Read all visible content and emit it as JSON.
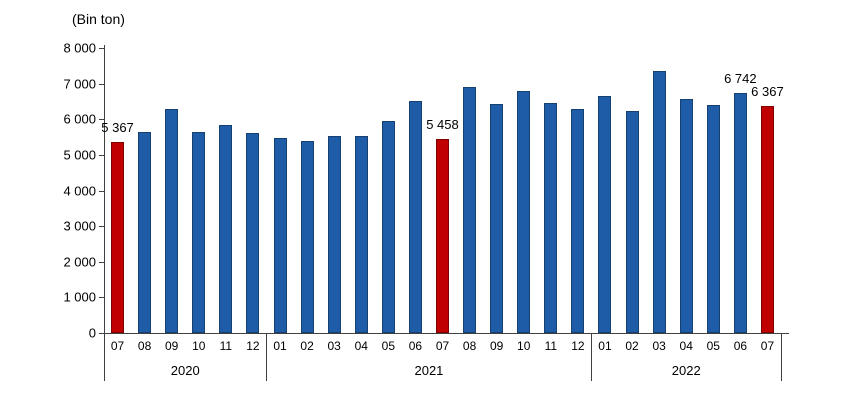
{
  "chart_data": {
    "type": "bar",
    "unit_label": "(Bin ton)",
    "ylim": [
      0,
      8000
    ],
    "ytick_step": 1000,
    "ytick_labels": [
      "0",
      "1 000",
      "2 000",
      "3 000",
      "4 000",
      "5 000",
      "6 000",
      "7 000",
      "8 000"
    ],
    "grid": false,
    "legend_position": "none",
    "categories": [
      "07",
      "08",
      "09",
      "10",
      "11",
      "12",
      "01",
      "02",
      "03",
      "04",
      "05",
      "06",
      "07",
      "08",
      "09",
      "10",
      "11",
      "12",
      "01",
      "02",
      "03",
      "04",
      "05",
      "06",
      "07"
    ],
    "values": [
      5367,
      5650,
      6300,
      5640,
      5840,
      5620,
      5480,
      5390,
      5520,
      5540,
      5950,
      6500,
      5458,
      6900,
      6430,
      6800,
      6450,
      6280,
      6660,
      6230,
      7350,
      6580,
      6390,
      6742,
      6367
    ],
    "highlighted_indices": [
      0,
      12,
      24
    ],
    "value_labels": [
      {
        "index": 0,
        "text": "5 367"
      },
      {
        "index": 12,
        "text": "5 458"
      },
      {
        "index": 23,
        "text": "6 742"
      },
      {
        "index": 24,
        "text": "6 367"
      }
    ],
    "year_groups": [
      {
        "label": "2020",
        "count": 6
      },
      {
        "label": "2021",
        "count": 12
      },
      {
        "label": "2022",
        "count": 7
      }
    ],
    "colors": {
      "bar_fill": "#1E5CA8",
      "bar_border": "#16406F",
      "highlight_fill": "#C00000",
      "highlight_border": "#7E0000",
      "axis": "#404040",
      "text": "#000000"
    }
  }
}
